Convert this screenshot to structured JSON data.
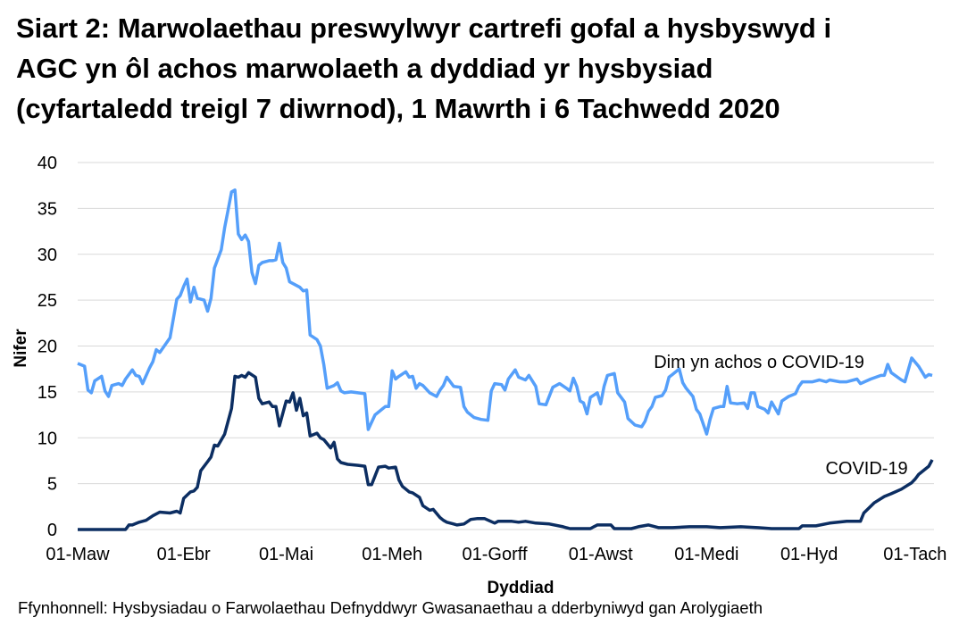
{
  "chart_data": {
    "type": "line",
    "title_lines": [
      "Siart 2: Marwolaethau preswylwyr cartrefi gofal a hysbyswyd i",
      "AGC yn ôl achos marwolaeth a dyddiad yr hysbysiad",
      "(cyfartaledd treigl 7 diwrnod), 1 Mawrth i 6 Tachwedd 2020"
    ],
    "xlabel": "Dyddiad",
    "ylabel": "Nifer",
    "source": "Ffynhonnell: Hysbysiadau o Farwolaethau Defnyddwyr Gwasanaethau a dderbyniwyd gan Arolygiaeth",
    "x_unit": "days since 01-Maw (1 March 2020)",
    "xlim": [
      0,
      250
    ],
    "ylim": [
      0,
      40
    ],
    "grid": true,
    "yticks": [
      0,
      5,
      10,
      15,
      20,
      25,
      30,
      35,
      40
    ],
    "xticks": [
      {
        "day": 0,
        "label": "01-Maw"
      },
      {
        "day": 31,
        "label": "01-Ebr"
      },
      {
        "day": 61,
        "label": "01-Mai"
      },
      {
        "day": 92,
        "label": "01-Meh"
      },
      {
        "day": 122,
        "label": "01-Gorff"
      },
      {
        "day": 153,
        "label": "01-Awst"
      },
      {
        "day": 184,
        "label": "01-Medi"
      },
      {
        "day": 214,
        "label": "01-Hyd"
      },
      {
        "day": 245,
        "label": "01-Tach"
      }
    ],
    "series": [
      {
        "name": "Dim yn achos o COVID-19",
        "color": "#559FFA",
        "label_pos": {
          "day": 210,
          "value": 18.3
        },
        "points": [
          [
            0,
            18.1
          ],
          [
            2,
            17.8
          ],
          [
            3,
            15.2
          ],
          [
            4,
            14.9
          ],
          [
            5,
            16.2
          ],
          [
            7,
            16.7
          ],
          [
            8,
            15.1
          ],
          [
            9,
            14.5
          ],
          [
            10,
            15.7
          ],
          [
            12,
            15.9
          ],
          [
            13,
            15.7
          ],
          [
            14,
            16.4
          ],
          [
            16,
            17.4
          ],
          [
            17,
            16.8
          ],
          [
            18,
            16.7
          ],
          [
            19,
            15.9
          ],
          [
            21,
            17.6
          ],
          [
            22,
            18.3
          ],
          [
            23,
            19.6
          ],
          [
            24,
            19.3
          ],
          [
            27,
            20.9
          ],
          [
            29,
            25.1
          ],
          [
            30,
            25.5
          ],
          [
            31,
            26.5
          ],
          [
            32,
            27.3
          ],
          [
            33,
            24.8
          ],
          [
            34,
            26.4
          ],
          [
            35,
            25.2
          ],
          [
            37,
            25.0
          ],
          [
            38,
            23.8
          ],
          [
            39,
            25.2
          ],
          [
            40,
            28.5
          ],
          [
            42,
            30.5
          ],
          [
            43,
            32.9
          ],
          [
            44,
            34.8
          ],
          [
            45,
            36.8
          ],
          [
            46,
            37.0
          ],
          [
            47,
            32.2
          ],
          [
            48,
            31.6
          ],
          [
            49,
            32.1
          ],
          [
            50,
            31.4
          ],
          [
            51,
            28.0
          ],
          [
            52,
            26.8
          ],
          [
            53,
            28.8
          ],
          [
            54,
            29.1
          ],
          [
            56,
            29.3
          ],
          [
            57,
            29.3
          ],
          [
            58,
            29.4
          ],
          [
            59,
            31.2
          ],
          [
            60,
            29.1
          ],
          [
            61,
            28.5
          ],
          [
            62,
            27.0
          ],
          [
            65,
            26.4
          ],
          [
            66,
            26.0
          ],
          [
            67,
            26.1
          ],
          [
            68,
            21.2
          ],
          [
            70,
            20.7
          ],
          [
            71,
            20.0
          ],
          [
            72,
            18.0
          ],
          [
            73,
            15.4
          ],
          [
            75,
            15.7
          ],
          [
            76,
            16.0
          ],
          [
            77,
            15.1
          ],
          [
            78,
            14.9
          ],
          [
            80,
            15.0
          ],
          [
            82,
            14.9
          ],
          [
            84,
            14.8
          ],
          [
            85,
            10.9
          ],
          [
            87,
            12.5
          ],
          [
            89,
            13.1
          ],
          [
            90,
            13.4
          ],
          [
            91,
            13.4
          ],
          [
            92,
            17.3
          ],
          [
            93,
            16.4
          ],
          [
            94,
            16.7
          ],
          [
            96,
            17.2
          ],
          [
            97,
            16.6
          ],
          [
            98,
            16.7
          ],
          [
            99,
            15.4
          ],
          [
            100,
            15.9
          ],
          [
            101,
            15.7
          ],
          [
            103,
            14.9
          ],
          [
            105,
            14.5
          ],
          [
            106,
            15.2
          ],
          [
            107,
            15.7
          ],
          [
            108,
            16.6
          ],
          [
            110,
            15.6
          ],
          [
            112,
            15.5
          ],
          [
            113,
            13.4
          ],
          [
            114,
            12.8
          ],
          [
            116,
            12.2
          ],
          [
            118,
            12.0
          ],
          [
            120,
            11.9
          ],
          [
            121,
            15.1
          ],
          [
            122,
            15.9
          ],
          [
            124,
            15.8
          ],
          [
            125,
            15.2
          ],
          [
            126,
            16.4
          ],
          [
            128,
            17.4
          ],
          [
            129,
            16.6
          ],
          [
            131,
            16.3
          ],
          [
            132,
            16.8
          ],
          [
            134,
            15.6
          ],
          [
            135,
            13.7
          ],
          [
            137,
            13.6
          ],
          [
            139,
            15.5
          ],
          [
            141,
            15.9
          ],
          [
            143,
            15.4
          ],
          [
            144,
            15.1
          ],
          [
            145,
            16.5
          ],
          [
            146,
            15.6
          ],
          [
            147,
            14.0
          ],
          [
            148,
            13.8
          ],
          [
            149,
            12.6
          ],
          [
            150,
            14.4
          ],
          [
            152,
            14.9
          ],
          [
            153,
            13.7
          ],
          [
            154,
            15.6
          ],
          [
            155,
            16.8
          ],
          [
            157,
            17.0
          ],
          [
            158,
            14.9
          ],
          [
            160,
            13.9
          ],
          [
            161,
            12.1
          ],
          [
            163,
            11.4
          ],
          [
            165,
            11.2
          ],
          [
            166,
            11.8
          ],
          [
            167,
            12.9
          ],
          [
            168,
            13.4
          ],
          [
            169,
            14.4
          ],
          [
            171,
            14.6
          ],
          [
            172,
            15.2
          ],
          [
            173,
            16.6
          ],
          [
            174,
            16.9
          ],
          [
            176,
            17.5
          ],
          [
            177,
            16.0
          ],
          [
            178,
            15.4
          ],
          [
            180,
            14.5
          ],
          [
            181,
            13.1
          ],
          [
            182,
            12.6
          ],
          [
            184,
            10.4
          ],
          [
            185,
            12.0
          ],
          [
            186,
            13.2
          ],
          [
            188,
            13.4
          ],
          [
            189,
            13.4
          ],
          [
            190,
            15.6
          ],
          [
            191,
            13.8
          ],
          [
            193,
            13.7
          ],
          [
            195,
            13.8
          ],
          [
            196,
            13.2
          ],
          [
            197,
            14.9
          ],
          [
            198,
            14.9
          ],
          [
            199,
            13.4
          ],
          [
            201,
            13.1
          ],
          [
            202,
            12.7
          ],
          [
            203,
            13.9
          ],
          [
            205,
            12.6
          ],
          [
            206,
            14.0
          ],
          [
            208,
            14.5
          ],
          [
            210,
            14.8
          ],
          [
            211,
            15.6
          ],
          [
            212,
            16.1
          ],
          [
            215,
            16.1
          ],
          [
            217,
            16.3
          ],
          [
            219,
            16.1
          ],
          [
            220,
            16.3
          ],
          [
            223,
            16.1
          ],
          [
            225,
            16.1
          ],
          [
            228,
            16.4
          ],
          [
            229,
            15.9
          ],
          [
            232,
            16.4
          ],
          [
            235,
            16.8
          ],
          [
            236,
            16.8
          ],
          [
            237,
            18.0
          ],
          [
            238,
            17.1
          ],
          [
            241,
            16.3
          ],
          [
            242,
            16.1
          ],
          [
            244,
            18.7
          ],
          [
            246,
            17.8
          ],
          [
            248,
            16.6
          ],
          [
            249,
            16.9
          ],
          [
            250,
            16.8
          ]
        ]
      },
      {
        "name": "COVID-19",
        "color": "#0C2E62",
        "label_pos": {
          "day": 246,
          "value": 6.7
        },
        "points": [
          [
            0,
            0
          ],
          [
            14,
            0
          ],
          [
            15,
            0.5
          ],
          [
            16,
            0.5
          ],
          [
            18,
            0.8
          ],
          [
            20,
            1.0
          ],
          [
            22,
            1.5
          ],
          [
            24,
            1.9
          ],
          [
            27,
            1.8
          ],
          [
            29,
            2.0
          ],
          [
            30,
            1.8
          ],
          [
            31,
            3.4
          ],
          [
            33,
            4.1
          ],
          [
            34,
            4.2
          ],
          [
            35,
            4.6
          ],
          [
            36,
            6.4
          ],
          [
            38,
            7.4
          ],
          [
            39,
            7.9
          ],
          [
            40,
            9.2
          ],
          [
            41,
            9.1
          ],
          [
            43,
            10.4
          ],
          [
            45,
            13.2
          ],
          [
            46,
            16.7
          ],
          [
            47,
            16.6
          ],
          [
            48,
            16.8
          ],
          [
            49,
            16.6
          ],
          [
            50,
            17.1
          ],
          [
            52,
            16.6
          ],
          [
            53,
            14.3
          ],
          [
            54,
            13.7
          ],
          [
            56,
            13.9
          ],
          [
            57,
            13.4
          ],
          [
            58,
            13.4
          ],
          [
            59,
            11.3
          ],
          [
            61,
            14.0
          ],
          [
            62,
            13.9
          ],
          [
            63,
            14.9
          ],
          [
            64,
            13.0
          ],
          [
            65,
            14.3
          ],
          [
            66,
            12.4
          ],
          [
            67,
            12.7
          ],
          [
            68,
            10.2
          ],
          [
            70,
            10.5
          ],
          [
            71,
            10.0
          ],
          [
            72,
            9.8
          ],
          [
            74,
            8.9
          ],
          [
            75,
            9.5
          ],
          [
            76,
            7.7
          ],
          [
            77,
            7.3
          ],
          [
            79,
            7.1
          ],
          [
            82,
            7.0
          ],
          [
            84,
            6.9
          ],
          [
            85,
            4.9
          ],
          [
            86,
            4.9
          ],
          [
            88,
            6.8
          ],
          [
            90,
            6.9
          ],
          [
            91,
            6.7
          ],
          [
            93,
            6.8
          ],
          [
            94,
            5.4
          ],
          [
            95,
            4.7
          ],
          [
            97,
            4.1
          ],
          [
            98,
            4.0
          ],
          [
            100,
            3.5
          ],
          [
            101,
            2.6
          ],
          [
            103,
            2.1
          ],
          [
            104,
            2.2
          ],
          [
            106,
            1.3
          ],
          [
            107,
            1.0
          ],
          [
            108,
            0.8
          ],
          [
            111,
            0.5
          ],
          [
            113,
            0.6
          ],
          [
            115,
            1.1
          ],
          [
            117,
            1.2
          ],
          [
            119,
            1.2
          ],
          [
            122,
            0.7
          ],
          [
            123,
            0.9
          ],
          [
            127,
            0.9
          ],
          [
            129,
            0.8
          ],
          [
            131,
            0.9
          ],
          [
            134,
            0.7
          ],
          [
            138,
            0.6
          ],
          [
            142,
            0.3
          ],
          [
            144,
            0.1
          ],
          [
            150,
            0.1
          ],
          [
            151,
            0.3
          ],
          [
            152,
            0.5
          ],
          [
            156,
            0.5
          ],
          [
            157,
            0.1
          ],
          [
            162,
            0.1
          ],
          [
            164,
            0.3
          ],
          [
            167,
            0.5
          ],
          [
            170,
            0.2
          ],
          [
            174,
            0.2
          ],
          [
            179,
            0.3
          ],
          [
            184,
            0.3
          ],
          [
            188,
            0.2
          ],
          [
            194,
            0.3
          ],
          [
            199,
            0.2
          ],
          [
            203,
            0.1
          ],
          [
            211,
            0.1
          ],
          [
            212,
            0.4
          ],
          [
            216,
            0.4
          ],
          [
            220,
            0.7
          ],
          [
            225,
            0.9
          ],
          [
            229,
            0.9
          ],
          [
            230,
            1.8
          ],
          [
            233,
            2.9
          ],
          [
            236,
            3.6
          ],
          [
            238,
            3.9
          ],
          [
            241,
            4.4
          ],
          [
            244,
            5.1
          ],
          [
            245,
            5.5
          ],
          [
            246,
            6.0
          ],
          [
            249,
            6.9
          ],
          [
            250,
            7.6
          ]
        ]
      }
    ]
  }
}
